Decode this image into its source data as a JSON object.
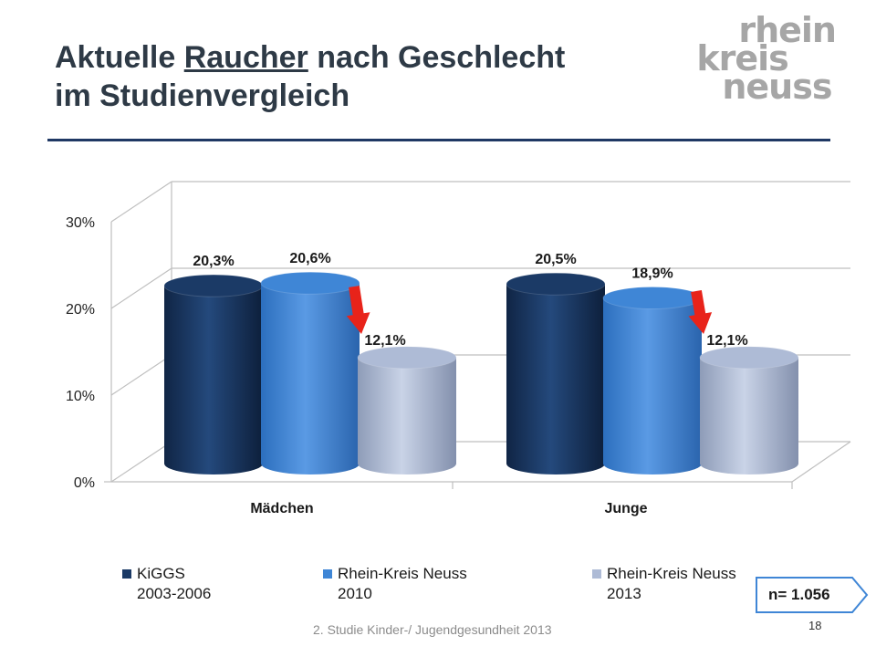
{
  "title": {
    "line1_pre": "Aktuelle ",
    "line1_underlined": "Raucher",
    "line1_post": " nach Geschlecht",
    "line2": "im Studienvergleich"
  },
  "logo": {
    "line1": "rhein",
    "line2": "kreis",
    "line3": "neuss"
  },
  "chart_data": {
    "type": "bar",
    "style": "3d-cylinder",
    "categories": [
      "Mädchen",
      "Junge"
    ],
    "series": [
      {
        "name": "KiGGS 2003-2006",
        "legend_line1": "KiGGS",
        "legend_line2": "2003-2006",
        "values": [
          20.3,
          20.5
        ],
        "labels": [
          "20,3%",
          "20,5%"
        ],
        "color": "#1b3a66"
      },
      {
        "name": "Rhein-Kreis Neuss 2010",
        "legend_line1": "Rhein-Kreis Neuss",
        "legend_line2": "2010",
        "values": [
          20.6,
          18.9
        ],
        "labels": [
          "20,6%",
          "18,9%"
        ],
        "color": "#3f86d6"
      },
      {
        "name": "Rhein-Kreis Neuss 2013",
        "legend_line1": "Rhein-Kreis Neuss",
        "legend_line2": "2013",
        "values": [
          12.1,
          12.1
        ],
        "labels": [
          "12,1%",
          "12,1%"
        ],
        "color": "#aebbd6"
      }
    ],
    "yticks": [
      "0%",
      "10%",
      "20%",
      "30%"
    ],
    "ylim": [
      0,
      30
    ],
    "grid": true,
    "legend_position": "bottom",
    "annotations": "red arrows from 2010 to 2013 bars"
  },
  "sample": "n= 1.056",
  "footer": "2. Studie Kinder-/ Jugendgesundheit 2013",
  "page_number": "18",
  "colors": {
    "title": "#2e3a46",
    "rule": "#1f3864",
    "arrow": "#e8231a",
    "logo": "#a6a6a6"
  }
}
